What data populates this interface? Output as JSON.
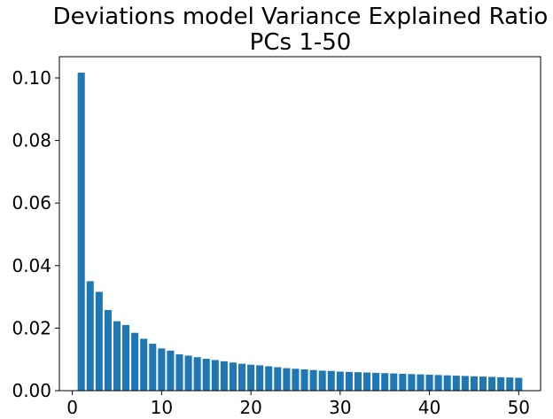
{
  "chart_data": {
    "type": "bar",
    "title": "Deviations model Variance Explained Ratio",
    "subtitle": "PCs 1-50",
    "xlabel": "",
    "ylabel": "",
    "xlim": [
      -1.45,
      52.45
    ],
    "ylim": [
      0,
      0.1068
    ],
    "grid": false,
    "bar_color": "#1f77b4",
    "x_ticks": [
      {
        "value": 0,
        "label": "0"
      },
      {
        "value": 10,
        "label": "10"
      },
      {
        "value": 20,
        "label": "20"
      },
      {
        "value": 30,
        "label": "30"
      },
      {
        "value": 40,
        "label": "40"
      },
      {
        "value": 50,
        "label": "50"
      }
    ],
    "y_ticks": [
      {
        "value": 0,
        "label": "0.00"
      },
      {
        "value": 0.02,
        "label": "0.02"
      },
      {
        "value": 0.04,
        "label": "0.04"
      },
      {
        "value": 0.06,
        "label": "0.06"
      },
      {
        "value": 0.08,
        "label": "0.08"
      },
      {
        "value": 0.1,
        "label": "0.10"
      }
    ],
    "x": [
      1,
      2,
      3,
      4,
      5,
      6,
      7,
      8,
      9,
      10,
      11,
      12,
      13,
      14,
      15,
      16,
      17,
      18,
      19,
      20,
      21,
      22,
      23,
      24,
      25,
      26,
      27,
      28,
      29,
      30,
      31,
      32,
      33,
      34,
      35,
      36,
      37,
      38,
      39,
      40,
      41,
      42,
      43,
      44,
      45,
      46,
      47,
      48,
      49,
      50
    ],
    "values": [
      0.1017,
      0.035,
      0.0316,
      0.0258,
      0.0222,
      0.021,
      0.0185,
      0.0166,
      0.015,
      0.0135,
      0.0128,
      0.0116,
      0.0112,
      0.0107,
      0.0102,
      0.0098,
      0.0094,
      0.009,
      0.0086,
      0.0083,
      0.0081,
      0.0078,
      0.0075,
      0.0072,
      0.007,
      0.0068,
      0.0066,
      0.0064,
      0.0063,
      0.0061,
      0.006,
      0.0059,
      0.0058,
      0.0057,
      0.0056,
      0.0055,
      0.0054,
      0.0053,
      0.0052,
      0.0051,
      0.005,
      0.0049,
      0.0048,
      0.0047,
      0.0046,
      0.0045,
      0.0044,
      0.0043,
      0.0042,
      0.0041
    ]
  }
}
